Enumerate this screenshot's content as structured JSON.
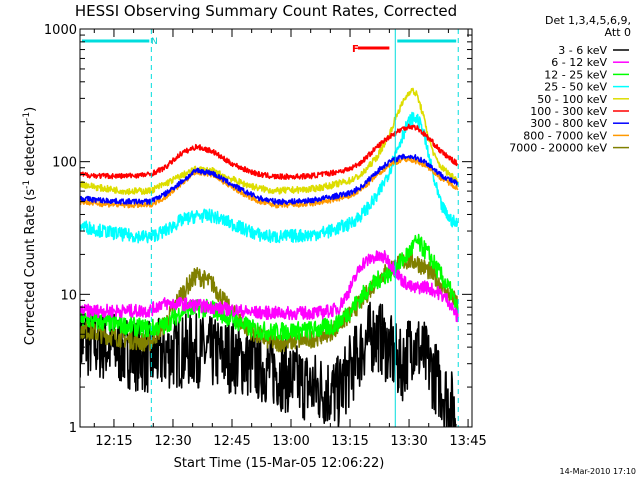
{
  "chart_data": {
    "type": "line",
    "title": "HESSI Observing Summary Count Rates, Corrected",
    "xlabel": "Start Time (15-Mar-05 12:06:22)",
    "ylabel_main": "Corrected Count Rate (s",
    "ylabel_sup1": "-1",
    "ylabel_mid": " detector",
    "ylabel_sup2": "-1",
    "ylabel_end": ")",
    "yscale": "log",
    "ylim": [
      1,
      1000
    ],
    "xlim": [
      "12:06:22",
      "13:46:00"
    ],
    "x_tick_labels": [
      "12:15",
      "12:30",
      "12:45",
      "13:00",
      "13:15",
      "13:30",
      "13:45"
    ],
    "x_tick_minutes": [
      15,
      30,
      45,
      60,
      75,
      90,
      105
    ],
    "y_tick_labels": [
      "1",
      "10",
      "100",
      "1000"
    ],
    "y_tick_values": [
      1,
      10,
      100,
      1000
    ],
    "legend_header": [
      "Det 1,3,4,5,6,9,",
      "Att 0"
    ],
    "legend_placement": "right",
    "annotations": {
      "night_label": "N",
      "flare_label": "F",
      "stamp": "14-Mar-2010 17:10"
    },
    "marker_times_min": [
      6.37,
      24.5,
      86.5,
      102.5
    ],
    "night_intervals_min": [
      [
        6.37,
        24.5
      ],
      [
        86.5,
        102.5
      ]
    ],
    "flare_interval_min": [
      77,
      85
    ],
    "series": [
      {
        "name": "3 - 6 keV",
        "color": "#000000",
        "x": [
          6.4,
          15,
          24,
          28,
          35,
          45,
          55,
          65,
          72,
          76,
          79,
          82,
          85,
          88,
          91,
          94,
          97,
          100,
          102
        ],
        "y": [
          4.5,
          4,
          3.3,
          3.6,
          3.8,
          3.4,
          2.7,
          2.0,
          1.8,
          3.0,
          4.5,
          5.0,
          3.8,
          2.8,
          4.5,
          3.3,
          2.3,
          1.6,
          1.2
        ]
      },
      {
        "name": "6 - 12 keV",
        "color": "#ff00ff",
        "x": [
          6.4,
          15,
          24,
          27,
          32,
          40,
          50,
          60,
          68,
          72,
          75,
          78,
          81,
          84,
          86,
          88,
          91,
          94,
          97,
          100,
          102.5
        ],
        "y": [
          7.5,
          7.5,
          7.5,
          8.5,
          8.5,
          8,
          7.3,
          7.2,
          7.3,
          7.8,
          11,
          17,
          19,
          19,
          16,
          13,
          11,
          11.5,
          10.5,
          9,
          6.5
        ]
      },
      {
        "name": "12 - 25 keV",
        "color": "#00ff00",
        "x": [
          6.4,
          15,
          24,
          28,
          33,
          40,
          45,
          50,
          55,
          60,
          66,
          71,
          75,
          79,
          83,
          86,
          89,
          92,
          95,
          98,
          101,
          102.5
        ],
        "y": [
          6.5,
          6.0,
          5.5,
          5.8,
          7.8,
          7.8,
          6.5,
          5.5,
          5.2,
          5.3,
          5.4,
          5.8,
          7.5,
          10.5,
          13.5,
          15,
          19,
          25,
          20,
          14,
          10,
          7
        ]
      },
      {
        "name": "25 - 50 keV",
        "color": "#00ffff",
        "x": [
          6.4,
          12,
          18,
          24,
          28,
          32,
          36,
          40,
          44,
          48,
          52,
          56,
          60,
          65,
          70,
          75,
          78,
          82,
          85,
          87,
          89,
          90.5,
          92,
          93.5,
          95,
          96.5,
          98,
          100,
          102.5
        ],
        "y": [
          33,
          30,
          28,
          27,
          30,
          36,
          39,
          39,
          35,
          31,
          28,
          27,
          27.5,
          28,
          30,
          34,
          40,
          55,
          85,
          125,
          175,
          210,
          210,
          175,
          110,
          70,
          48,
          38,
          33
        ]
      },
      {
        "name": "50 - 100 keV",
        "color": "#dddd00",
        "x": [
          6.4,
          12,
          18,
          24,
          28,
          32,
          36,
          40,
          44,
          48,
          52,
          56,
          60,
          65,
          70,
          75,
          78,
          82,
          85,
          87,
          89,
          90.5,
          92,
          93.5,
          95,
          96.5,
          98,
          100,
          102.5
        ],
        "y": [
          68,
          63,
          60,
          60,
          68,
          78,
          88,
          85,
          76,
          68,
          63,
          60,
          61,
          62,
          66,
          72,
          80,
          110,
          160,
          230,
          300,
          350,
          320,
          230,
          150,
          110,
          92,
          82,
          72
        ]
      },
      {
        "name": "100 - 300 keV",
        "color": "#ff0000",
        "x": [
          6.4,
          12,
          18,
          24,
          28,
          32,
          36,
          40,
          44,
          48,
          52,
          56,
          60,
          65,
          70,
          75,
          78,
          82,
          85,
          88,
          90,
          92,
          94,
          96,
          98,
          100,
          102.5
        ],
        "y": [
          80,
          78,
          78,
          80,
          90,
          115,
          130,
          120,
          100,
          88,
          80,
          77,
          77,
          78,
          82,
          88,
          100,
          130,
          155,
          175,
          185,
          180,
          160,
          140,
          120,
          108,
          95
        ]
      },
      {
        "name": "300 - 800 keV",
        "color": "#0000ff",
        "x": [
          6.4,
          12,
          18,
          24,
          28,
          32,
          36,
          40,
          44,
          48,
          52,
          56,
          60,
          65,
          70,
          75,
          78,
          82,
          85,
          88,
          90,
          92,
          94,
          96,
          98,
          100,
          102.5
        ],
        "y": [
          53,
          51,
          50,
          50,
          57,
          70,
          86,
          82,
          70,
          60,
          53,
          50,
          50,
          51,
          54,
          58,
          65,
          85,
          100,
          108,
          110,
          107,
          100,
          90,
          80,
          74,
          68
        ]
      },
      {
        "name": "800 - 7000 keV",
        "color": "#ff9900",
        "x": [
          6.4,
          12,
          18,
          24,
          28,
          32,
          36,
          40,
          44,
          48,
          52,
          56,
          60,
          65,
          70,
          75,
          78,
          82,
          85,
          88,
          90,
          92,
          94,
          96,
          98,
          100,
          102.5
        ],
        "y": [
          50,
          48,
          47,
          47,
          54,
          68,
          84,
          80,
          67,
          57,
          50,
          47,
          47,
          48,
          51,
          55,
          62,
          80,
          95,
          103,
          105,
          100,
          95,
          86,
          76,
          70,
          63
        ]
      },
      {
        "name": "7000 - 20000 keV",
        "color": "#808000",
        "x": [
          6.4,
          12,
          18,
          24,
          28,
          32,
          36,
          40,
          44,
          48,
          52,
          56,
          60,
          65,
          70,
          75,
          78,
          82,
          85,
          88,
          90,
          92,
          95,
          98,
          100,
          102.5
        ],
        "y": [
          5.5,
          5.0,
          4.6,
          4.3,
          6.0,
          10,
          14,
          12,
          8,
          5.8,
          4.8,
          4.3,
          4.4,
          4.6,
          5.2,
          7.0,
          9.0,
          13,
          15.5,
          17.5,
          18,
          17.5,
          15,
          12,
          10,
          8.5
        ]
      }
    ]
  }
}
